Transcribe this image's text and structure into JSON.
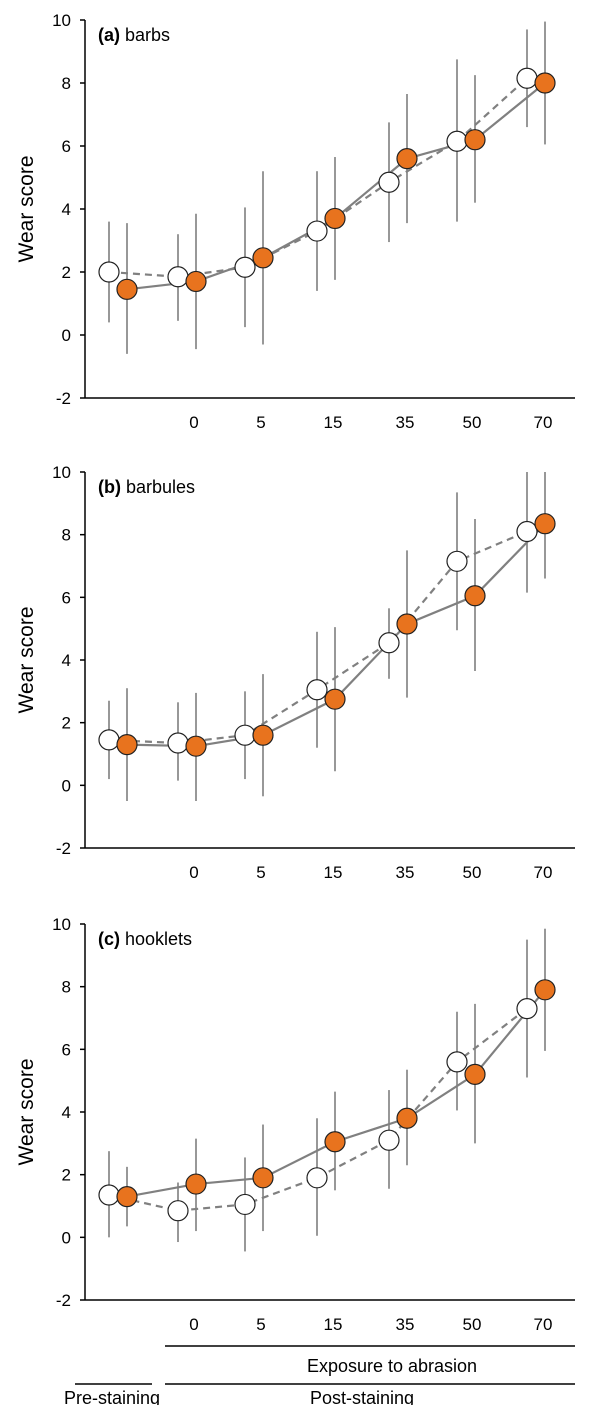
{
  "figure": {
    "x_tick_labels": [
      "0",
      "5",
      "15",
      "35",
      "50",
      "70"
    ],
    "y_axis_label": "Wear score",
    "exposure_label": "Exposure to abrasion",
    "pre_staining_label": "Pre-staining",
    "post_staining_label": "Post-staining",
    "colors": {
      "filled": "#E8731E",
      "open": "#FFFFFF",
      "line": "#808080",
      "errorbar": "#7f7f7f"
    }
  },
  "chart_data": [
    {
      "type": "line",
      "panel_letter": "(a)",
      "title": "barbs",
      "ylabel": "Wear score",
      "ylim": [
        -2,
        10
      ],
      "yticks": [
        -2,
        0,
        2,
        4,
        6,
        8,
        10
      ],
      "categories": [
        "",
        "0",
        "5",
        "15",
        "35",
        "50",
        "70"
      ],
      "series": [
        {
          "style": "open-circle-dashed",
          "values": [
            2.0,
            1.85,
            2.15,
            3.3,
            4.85,
            6.15,
            8.15
          ],
          "err_low": [
            0.4,
            0.45,
            0.25,
            1.4,
            2.95,
            3.6,
            6.6
          ],
          "err_high": [
            3.6,
            3.2,
            4.05,
            5.2,
            6.75,
            8.75,
            9.7
          ]
        },
        {
          "style": "filled-circle-solid",
          "values": [
            1.45,
            1.7,
            2.45,
            3.7,
            5.6,
            6.2,
            8.0
          ],
          "err_low": [
            -0.6,
            -0.45,
            -0.3,
            1.75,
            3.55,
            4.2,
            6.05
          ],
          "err_high": [
            3.55,
            3.85,
            5.2,
            5.65,
            7.65,
            8.25,
            9.95
          ]
        }
      ]
    },
    {
      "type": "line",
      "panel_letter": "(b)",
      "title": "barbules",
      "ylabel": "Wear score",
      "ylim": [
        -2,
        10
      ],
      "yticks": [
        -2,
        0,
        2,
        4,
        6,
        8,
        10
      ],
      "categories": [
        "",
        "0",
        "5",
        "15",
        "35",
        "50",
        "70"
      ],
      "series": [
        {
          "style": "open-circle-dashed",
          "values": [
            1.45,
            1.35,
            1.6,
            3.05,
            4.55,
            7.15,
            8.1
          ],
          "err_low": [
            0.2,
            0.15,
            0.2,
            1.2,
            3.4,
            4.95,
            6.15
          ],
          "err_high": [
            2.7,
            2.65,
            3.0,
            4.9,
            5.65,
            9.35,
            10.0
          ]
        },
        {
          "style": "filled-circle-solid",
          "values": [
            1.3,
            1.25,
            1.6,
            2.75,
            5.15,
            6.05,
            8.35
          ],
          "err_low": [
            -0.5,
            -0.5,
            -0.35,
            0.45,
            2.8,
            3.65,
            6.6
          ],
          "err_high": [
            3.1,
            2.95,
            3.55,
            5.05,
            7.5,
            8.5,
            10.0
          ]
        }
      ]
    },
    {
      "type": "line",
      "panel_letter": "(c)",
      "title": "hooklets",
      "ylabel": "Wear score",
      "ylim": [
        -2,
        10
      ],
      "yticks": [
        -2,
        0,
        2,
        4,
        6,
        8,
        10
      ],
      "categories": [
        "",
        "0",
        "5",
        "15",
        "35",
        "50",
        "70"
      ],
      "series": [
        {
          "style": "open-circle-dashed",
          "values": [
            1.35,
            0.85,
            1.05,
            1.9,
            3.1,
            5.6,
            7.3
          ],
          "err_low": [
            0.0,
            -0.15,
            -0.45,
            0.05,
            1.55,
            4.05,
            5.1
          ],
          "err_high": [
            2.75,
            1.75,
            2.55,
            3.8,
            4.7,
            7.2,
            9.5
          ]
        },
        {
          "style": "filled-circle-solid",
          "values": [
            1.3,
            1.7,
            1.9,
            3.05,
            3.8,
            5.2,
            7.9
          ],
          "err_low": [
            0.35,
            0.2,
            0.2,
            1.5,
            2.3,
            3.0,
            5.95
          ],
          "err_high": [
            2.25,
            3.15,
            3.6,
            4.65,
            5.35,
            7.45,
            9.85
          ]
        }
      ]
    }
  ]
}
